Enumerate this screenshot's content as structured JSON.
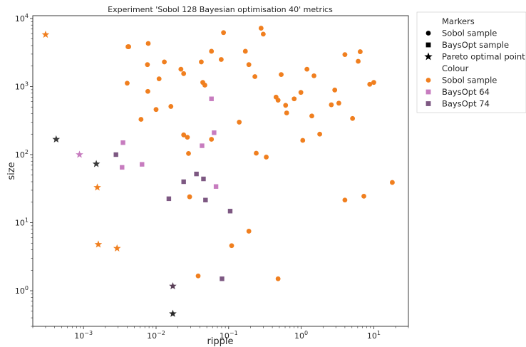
{
  "chart_data": {
    "type": "scatter",
    "title": "Experiment 'Sobol 128 Bayesian optimisation 40' metrics",
    "xlabel": "ripple",
    "ylabel": "size",
    "xscale": "log",
    "yscale": "log",
    "xlim": [
      0.0002,
      30
    ],
    "ylim": [
      0.3,
      11000
    ],
    "grid": false,
    "legend_position": "outside right",
    "x_ticks": [
      {
        "value": 0.001,
        "base": "10",
        "exp": "−3"
      },
      {
        "value": 0.01,
        "base": "10",
        "exp": "−2"
      },
      {
        "value": 0.1,
        "base": "10",
        "exp": "−1"
      },
      {
        "value": 1,
        "base": "10",
        "exp": "0"
      },
      {
        "value": 10,
        "base": "10",
        "exp": "1"
      }
    ],
    "y_ticks": [
      {
        "value": 1,
        "base": "10",
        "exp": "0"
      },
      {
        "value": 10,
        "base": "10",
        "exp": "1"
      },
      {
        "value": 100,
        "base": "10",
        "exp": "2"
      },
      {
        "value": 1000,
        "base": "10",
        "exp": "3"
      },
      {
        "value": 10000,
        "base": "10",
        "exp": "4"
      }
    ],
    "legend": {
      "markers_header": "Markers",
      "markers": [
        {
          "label": "Sobol sample",
          "shape": "circle"
        },
        {
          "label": "BaysOpt sample",
          "shape": "square"
        },
        {
          "label": "Pareto optimal point",
          "shape": "star"
        }
      ],
      "colour_header": "Colour",
      "colours": [
        {
          "label": "Sobol sample",
          "color": "#f07f1f"
        },
        {
          "label": "BaysOpt 64",
          "color": "#c77cbf"
        },
        {
          "label": "BaysOpt 74",
          "color": "#7d5882"
        }
      ]
    },
    "series": [
      {
        "name": "Sobol sample",
        "marker": "circle",
        "color": "#f07f1f",
        "points": [
          [
            0.0041,
            3850
          ],
          [
            0.0042,
            3850
          ],
          [
            0.0078,
            4300
          ],
          [
            0.013,
            2300
          ],
          [
            0.0076,
            2100
          ],
          [
            0.011,
            1300
          ],
          [
            0.004,
            1120
          ],
          [
            0.0077,
            850
          ],
          [
            0.01,
            460
          ],
          [
            0.0062,
            330
          ],
          [
            0.016,
            510
          ],
          [
            0.022,
            1800
          ],
          [
            0.024,
            1550
          ],
          [
            0.042,
            2300
          ],
          [
            0.044,
            1150
          ],
          [
            0.047,
            1050
          ],
          [
            0.058,
            3300
          ],
          [
            0.079,
            2500
          ],
          [
            0.085,
            6200
          ],
          [
            0.17,
            3300
          ],
          [
            0.19,
            2100
          ],
          [
            0.23,
            1400
          ],
          [
            0.28,
            7200
          ],
          [
            0.3,
            5900
          ],
          [
            0.14,
            300
          ],
          [
            0.024,
            195
          ],
          [
            0.027,
            180
          ],
          [
            0.028,
            104
          ],
          [
            0.058,
            168
          ],
          [
            0.24,
            105
          ],
          [
            0.33,
            92
          ],
          [
            0.029,
            24
          ],
          [
            0.19,
            7.5
          ],
          [
            0.11,
            4.6
          ],
          [
            0.038,
            1.65
          ],
          [
            0.48,
            1.5
          ],
          [
            0.53,
            1500
          ],
          [
            0.45,
            700
          ],
          [
            0.48,
            630
          ],
          [
            0.61,
            530
          ],
          [
            0.63,
            410
          ],
          [
            0.8,
            660
          ],
          [
            0.99,
            820
          ],
          [
            1.2,
            1800
          ],
          [
            1.5,
            1440
          ],
          [
            1.4,
            370
          ],
          [
            1.8,
            200
          ],
          [
            1.05,
            162
          ],
          [
            2.9,
            890
          ],
          [
            3.3,
            570
          ],
          [
            2.6,
            540
          ],
          [
            4.0,
            2950
          ],
          [
            6.5,
            3250
          ],
          [
            6.1,
            2350
          ],
          [
            5.1,
            340
          ],
          [
            8.8,
            1080
          ],
          [
            10,
            1150
          ],
          [
            7.3,
            24.5
          ],
          [
            4.0,
            21.5
          ],
          [
            18,
            39
          ]
        ]
      },
      {
        "name": "BaysOpt 64",
        "marker": "square",
        "color": "#c77cbf",
        "points": [
          [
            0.0035,
            150
          ],
          [
            0.0034,
            65
          ],
          [
            0.0064,
            72
          ],
          [
            0.043,
            135
          ],
          [
            0.063,
            210
          ],
          [
            0.067,
            34
          ],
          [
            0.058,
            660
          ]
        ]
      },
      {
        "name": "BaysOpt 74",
        "marker": "square",
        "color": "#7d5882",
        "points": [
          [
            0.0028,
            100
          ],
          [
            0.036,
            52
          ],
          [
            0.024,
            40
          ],
          [
            0.045,
            44
          ],
          [
            0.015,
            22.5
          ],
          [
            0.048,
            21.5
          ],
          [
            0.105,
            14.8
          ],
          [
            0.081,
            1.5
          ]
        ]
      },
      {
        "name": "Pareto optimal point",
        "marker": "star",
        "points": [
          {
            "x": 0.0003,
            "y": 5800,
            "color": "#f07f1f"
          },
          {
            "x": 0.00042,
            "y": 168,
            "color": "#3a3a3a"
          },
          {
            "x": 0.00088,
            "y": 100,
            "color": "#c77cbf"
          },
          {
            "x": 0.0015,
            "y": 73,
            "color": "#3a3a3a"
          },
          {
            "x": 0.00155,
            "y": 33,
            "color": "#f07f1f"
          },
          {
            "x": 0.0016,
            "y": 4.8,
            "color": "#f07f1f"
          },
          {
            "x": 0.0029,
            "y": 4.2,
            "color": "#f07f1f"
          },
          {
            "x": 0.017,
            "y": 1.17,
            "color": "#5a3f58"
          },
          {
            "x": 0.017,
            "y": 0.46,
            "color": "#2a2a2a"
          }
        ]
      }
    ]
  }
}
